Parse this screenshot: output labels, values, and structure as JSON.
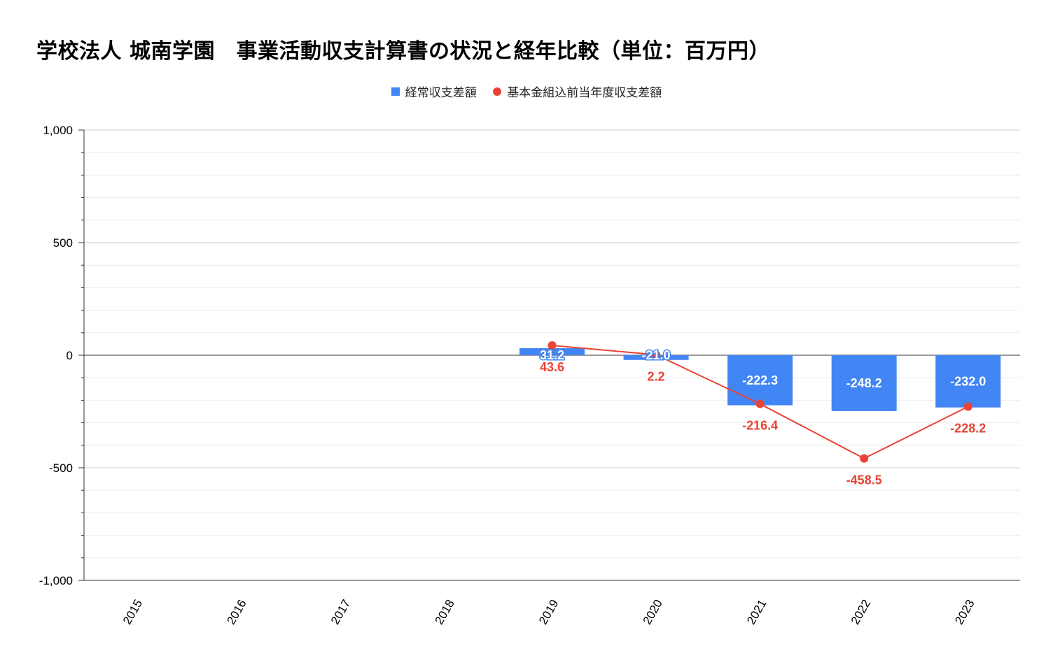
{
  "chart_data": {
    "type": "bar",
    "title": "学校法人 城南学園　事業活動収支計算書の状況と経年比較（単位：百万円）",
    "categories": [
      "2015",
      "2016",
      "2017",
      "2018",
      "2019",
      "2020",
      "2021",
      "2022",
      "2023"
    ],
    "series": [
      {
        "name": "経常収支差額",
        "type": "bar",
        "color": "#4285f4",
        "values": [
          null,
          null,
          null,
          null,
          31.2,
          -21.0,
          -222.3,
          -248.2,
          -232.0
        ],
        "labels": [
          "",
          "",
          "",
          "",
          "31.2",
          "-21.0",
          "-222.3",
          "-248.2",
          "-232.0"
        ]
      },
      {
        "name": "基本金組込前当年度収支差額",
        "type": "line",
        "color": "#ea4335",
        "values": [
          null,
          null,
          null,
          null,
          43.6,
          2.2,
          -216.4,
          -458.5,
          -228.2
        ],
        "labels": [
          "",
          "",
          "",
          "",
          "43.6",
          "2.2",
          "-216.4",
          "-458.5",
          "-228.2"
        ]
      }
    ],
    "ylim": [
      -1000,
      1000
    ],
    "yticks": [
      {
        "value": 1000,
        "label": "1,000"
      },
      {
        "value": 500,
        "label": "500"
      },
      {
        "value": 0,
        "label": "0"
      },
      {
        "value": -500,
        "label": "-500"
      },
      {
        "value": -1000,
        "label": "-1,000"
      }
    ],
    "xlabel": "",
    "ylabel": "",
    "grid": true,
    "legend_position": "top"
  }
}
